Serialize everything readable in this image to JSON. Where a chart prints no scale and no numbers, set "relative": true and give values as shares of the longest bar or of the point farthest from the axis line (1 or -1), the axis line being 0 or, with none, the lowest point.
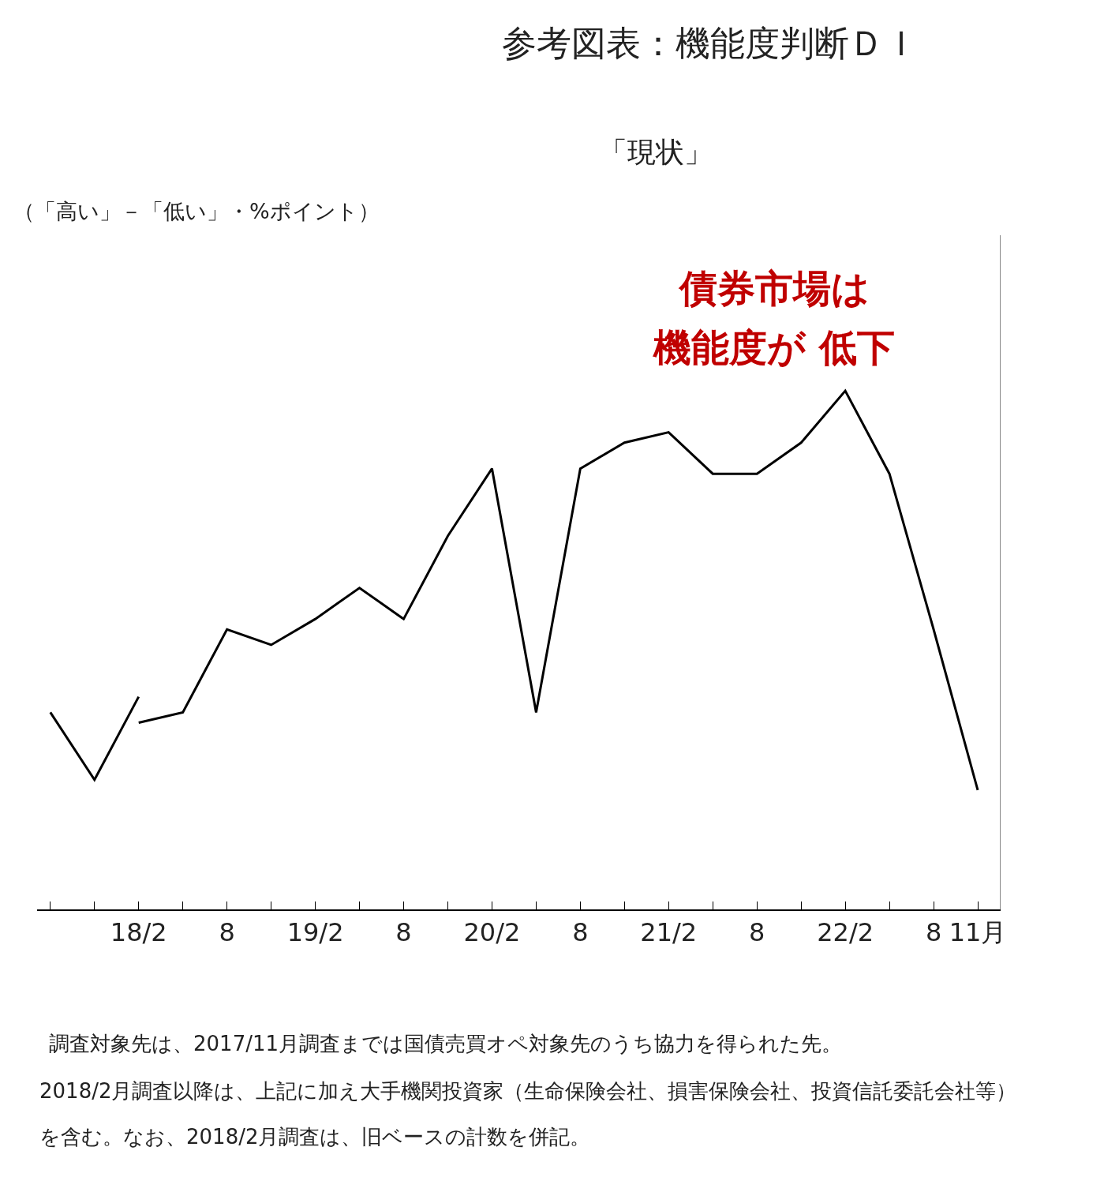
{
  "chart_data": {
    "type": "line",
    "title": "参考図表：機能度判断ＤＩ",
    "subtitle": "「現状」",
    "relative": true,
    "marker": "none",
    "line_style": "solid",
    "categories": [
      null,
      null,
      "18/2",
      null,
      "8",
      null,
      "19/2",
      null,
      "8",
      null,
      "20/2",
      null,
      "8",
      null,
      "21/2",
      null,
      "8",
      null,
      "22/2",
      null,
      "8",
      "11月"
    ],
    "series": [
      {
        "color": "#000000",
        "values": [
          0.38,
          0.25,
          0.41,
          null,
          null,
          null,
          null,
          null,
          null,
          null,
          null,
          null,
          null,
          null,
          null,
          null,
          null,
          null,
          null,
          null,
          null,
          null
        ]
      },
      {
        "color": "#000000",
        "values": [
          null,
          null,
          0.36,
          0.38,
          0.54,
          0.51,
          0.56,
          0.62,
          0.56,
          0.72,
          0.85,
          0.38,
          0.85,
          0.9,
          0.92,
          0.84,
          0.84,
          0.9,
          1,
          0.84,
          0.54,
          0.23
        ]
      }
    ],
    "annotations": [
      "（「高い」－「低い」・%ポイント）",
      "債券市場は",
      "機能度が 低下",
      "調査対象先は、2017/11月調査までは国債売買オペ対象先のうち協力を得られた先。",
      "2018/2月調査以降は、上記に加え大手機関投資家（生命保険会社、損害保険会社、投資信託委託会社等）",
      "を含む。なお、2018/2月調査は、旧ベースの計数を併記。"
    ]
  }
}
